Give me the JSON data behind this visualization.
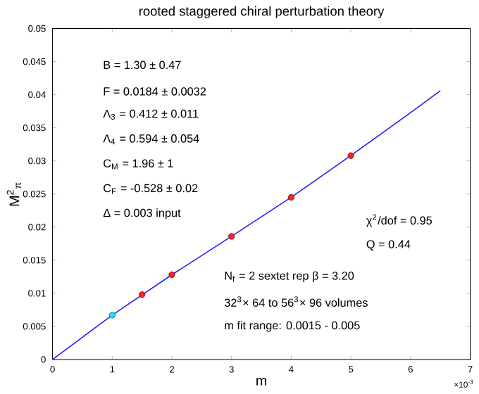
{
  "chart_data": {
    "type": "line",
    "title": "rooted staggered chiral perturbation theory",
    "xlabel": "m",
    "ylabel": "M$^{2}$$_{π}$",
    "xlim": [
      0,
      7
    ],
    "ylim": [
      0,
      0.05
    ],
    "xticks": [
      0,
      1,
      2,
      3,
      4,
      5,
      6,
      7
    ],
    "yticks": [
      0,
      0.005,
      0.01,
      0.015,
      0.02,
      0.025,
      0.03,
      0.035,
      0.04,
      0.045,
      0.05
    ],
    "grid": false,
    "series": [
      {
        "color": "#1f1fff",
        "marker": "none",
        "x": [
          0,
          1,
          2,
          3,
          4,
          5,
          6,
          6.5
        ],
        "values": [
          0,
          0.0067,
          0.0128,
          0.0186,
          0.0245,
          0.0308,
          0.0373,
          0.0406
        ]
      },
      {
        "type": "scatter",
        "color": "#ff2020",
        "marker": "circle",
        "x": [
          1.5,
          2,
          3,
          4,
          5
        ],
        "values": [
          0.0098,
          0.0128,
          0.0186,
          0.0245,
          0.0308
        ]
      },
      {
        "type": "scatter",
        "color": "#20e0ff",
        "marker": "circle",
        "x": [
          1
        ],
        "values": [
          0.0067
        ]
      }
    ],
    "annotations": [
      "B =  1.30 ± 0.47",
      "F =  0.0184 ± 0.0032",
      "Λ$_{3}$ =  0.412 ± 0.011",
      "Λ$_{4}$ =  0.594 ± 0.054",
      "C$_{M}$  =  1.96 ± 1",
      "C$_{F}$ =  -0.528 ± 0.02",
      "Δ     =  0.003  input",
      "χ$^{2}$/dof = 0.95",
      "Q = 0.44",
      "N$_{f}$ = 2    sextet rep     β = 3.20",
      "32$^{3}$× 64 to 56$^{3}$× 96  volumes",
      "m fit range:  0.0015 - 0.005",
      "×10$^{-3}$"
    ]
  }
}
